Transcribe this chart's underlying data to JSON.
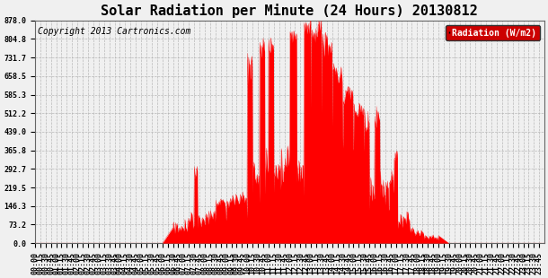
{
  "title": "Solar Radiation per Minute (24 Hours) 20130812",
  "copyright_text": "Copyright 2013 Cartronics.com",
  "legend_label": "Radiation (W/m2)",
  "ylim": [
    0.0,
    878.0
  ],
  "yticks": [
    0.0,
    73.2,
    146.3,
    219.5,
    292.7,
    365.8,
    439.0,
    512.2,
    585.3,
    658.5,
    731.7,
    804.8,
    878.0
  ],
  "fill_color": "#ff0000",
  "background_color": "#f0f0f0",
  "grid_color": "#aaaaaa",
  "title_fontsize": 11,
  "copyright_fontsize": 7,
  "tick_fontsize": 6,
  "legend_bg": "#cc0000",
  "legend_text_color": "#ffffff"
}
